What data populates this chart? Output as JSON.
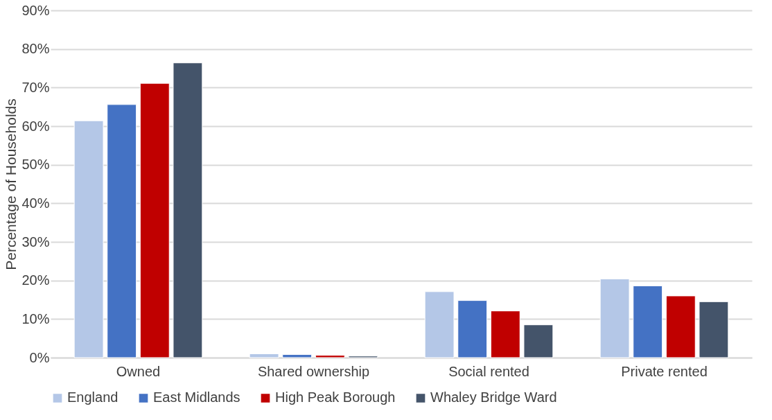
{
  "chart_data": {
    "type": "bar",
    "ylabel": "Percentage of Households",
    "categories": [
      "Owned",
      "Shared ownership",
      "Social rented",
      "Private rented"
    ],
    "series": [
      {
        "name": "England",
        "color": "#b4c7e7",
        "values": [
          61.4,
          1.0,
          17.1,
          20.4
        ]
      },
      {
        "name": "East Midlands",
        "color": "#4472c4",
        "values": [
          65.6,
          0.8,
          14.8,
          18.6
        ]
      },
      {
        "name": "High Peak Borough",
        "color": "#c00000",
        "values": [
          71.1,
          0.6,
          12.1,
          16.0
        ]
      },
      {
        "name": "Whaley Bridge Ward",
        "color": "#44546a",
        "values": [
          76.4,
          0.4,
          8.5,
          14.5
        ]
      }
    ],
    "ylim": [
      0,
      90
    ],
    "yticks": [
      {
        "value": 0,
        "label": "0%"
      },
      {
        "value": 10,
        "label": "10%"
      },
      {
        "value": 20,
        "label": "20%"
      },
      {
        "value": 30,
        "label": "30%"
      },
      {
        "value": 40,
        "label": "40%"
      },
      {
        "value": 50,
        "label": "50%"
      },
      {
        "value": 60,
        "label": "60%"
      },
      {
        "value": 70,
        "label": "70%"
      },
      {
        "value": 80,
        "label": "80%"
      },
      {
        "value": 90,
        "label": "90%"
      }
    ],
    "grid": "y",
    "legend": "bottom"
  }
}
